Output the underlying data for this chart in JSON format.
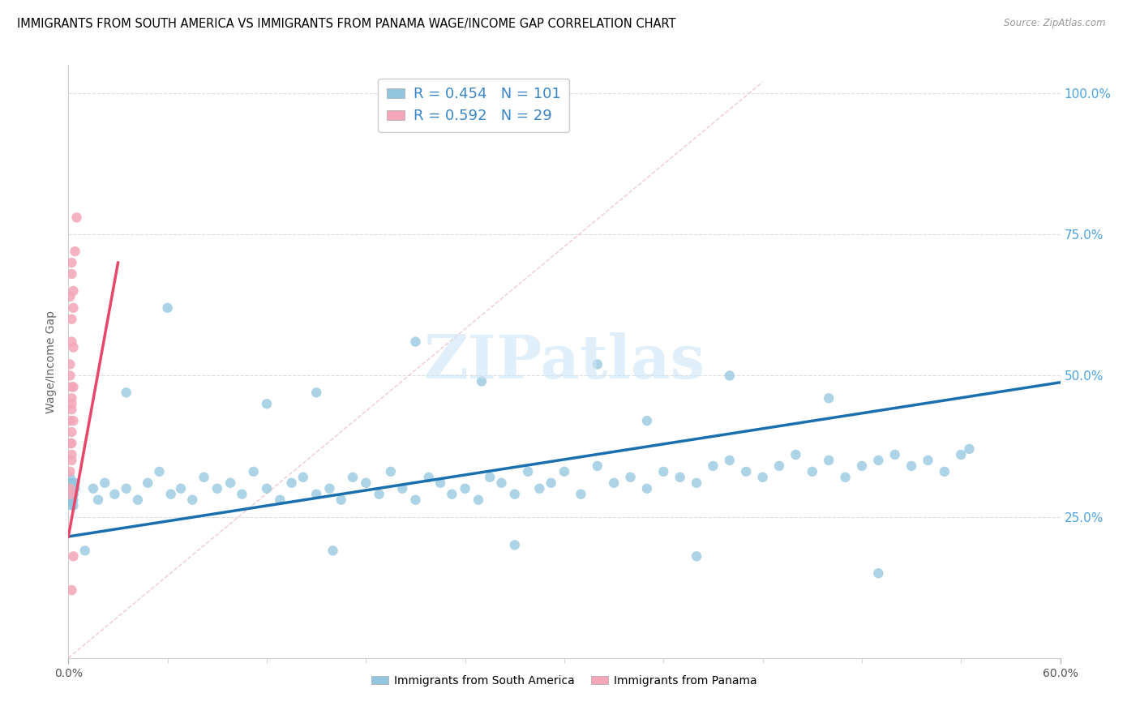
{
  "title": "IMMIGRANTS FROM SOUTH AMERICA VS IMMIGRANTS FROM PANAMA WAGE/INCOME GAP CORRELATION CHART",
  "source": "Source: ZipAtlas.com",
  "ylabel": "Wage/Income Gap",
  "right_yticklabels": [
    "25.0%",
    "50.0%",
    "75.0%",
    "100.0%"
  ],
  "right_ytick_vals": [
    0.25,
    0.5,
    0.75,
    1.0
  ],
  "legend_label_blue": "Immigrants from South America",
  "legend_label_pink": "Immigrants from Panama",
  "R_blue": 0.454,
  "N_blue": 101,
  "R_pink": 0.592,
  "N_pink": 29,
  "color_blue": "#92c5de",
  "color_blue_line": "#1a6faf",
  "color_pink": "#f4a6b8",
  "color_pink_line": "#e8476a",
  "watermark_color": "#cce5f5",
  "blue_x": [
    0.002,
    0.003,
    0.004,
    0.002,
    0.003,
    0.001,
    0.002,
    0.003,
    0.002,
    0.001,
    0.003,
    0.002,
    0.004,
    0.003,
    0.002,
    0.001,
    0.003,
    0.002,
    0.001,
    0.003,
    0.015,
    0.018,
    0.022,
    0.028,
    0.035,
    0.042,
    0.048,
    0.055,
    0.062,
    0.068,
    0.075,
    0.082,
    0.09,
    0.098,
    0.105,
    0.112,
    0.12,
    0.128,
    0.135,
    0.142,
    0.15,
    0.158,
    0.165,
    0.172,
    0.18,
    0.188,
    0.195,
    0.202,
    0.21,
    0.218,
    0.225,
    0.232,
    0.24,
    0.248,
    0.255,
    0.262,
    0.27,
    0.278,
    0.285,
    0.292,
    0.3,
    0.31,
    0.32,
    0.33,
    0.34,
    0.35,
    0.36,
    0.37,
    0.38,
    0.39,
    0.4,
    0.41,
    0.42,
    0.43,
    0.44,
    0.45,
    0.46,
    0.47,
    0.48,
    0.49,
    0.5,
    0.51,
    0.52,
    0.53,
    0.54,
    0.545,
    0.035,
    0.12,
    0.21,
    0.32,
    0.4,
    0.46,
    0.15,
    0.25,
    0.35,
    0.06,
    0.16,
    0.27,
    0.38,
    0.49,
    0.01
  ],
  "blue_y": [
    0.28,
    0.3,
    0.31,
    0.29,
    0.27,
    0.3,
    0.28,
    0.29,
    0.31,
    0.3,
    0.28,
    0.29,
    0.3,
    0.31,
    0.28,
    0.32,
    0.29,
    0.27,
    0.31,
    0.3,
    0.3,
    0.28,
    0.31,
    0.29,
    0.3,
    0.28,
    0.31,
    0.33,
    0.29,
    0.3,
    0.28,
    0.32,
    0.3,
    0.31,
    0.29,
    0.33,
    0.3,
    0.28,
    0.31,
    0.32,
    0.29,
    0.3,
    0.28,
    0.32,
    0.31,
    0.29,
    0.33,
    0.3,
    0.28,
    0.32,
    0.31,
    0.29,
    0.3,
    0.28,
    0.32,
    0.31,
    0.29,
    0.33,
    0.3,
    0.31,
    0.33,
    0.29,
    0.34,
    0.31,
    0.32,
    0.3,
    0.33,
    0.32,
    0.31,
    0.34,
    0.35,
    0.33,
    0.32,
    0.34,
    0.36,
    0.33,
    0.35,
    0.32,
    0.34,
    0.35,
    0.36,
    0.34,
    0.35,
    0.33,
    0.36,
    0.37,
    0.47,
    0.45,
    0.56,
    0.52,
    0.5,
    0.46,
    0.47,
    0.49,
    0.42,
    0.62,
    0.19,
    0.2,
    0.18,
    0.15,
    0.19
  ],
  "pink_x": [
    0.001,
    0.001,
    0.002,
    0.002,
    0.001,
    0.002,
    0.003,
    0.002,
    0.001,
    0.002,
    0.001,
    0.002,
    0.001,
    0.002,
    0.003,
    0.002,
    0.003,
    0.002,
    0.001,
    0.002,
    0.002,
    0.003,
    0.001,
    0.002,
    0.003,
    0.004,
    0.005,
    0.003,
    0.002
  ],
  "pink_y": [
    0.3,
    0.29,
    0.35,
    0.38,
    0.33,
    0.36,
    0.42,
    0.45,
    0.5,
    0.48,
    0.52,
    0.6,
    0.64,
    0.68,
    0.55,
    0.7,
    0.65,
    0.44,
    0.42,
    0.46,
    0.4,
    0.48,
    0.38,
    0.56,
    0.62,
    0.72,
    0.78,
    0.18,
    0.12
  ],
  "blue_line_x0": 0.0,
  "blue_line_x1": 0.6,
  "blue_line_y0": 0.215,
  "blue_line_y1": 0.488,
  "pink_line_x0": 0.0,
  "pink_line_x1": 0.03,
  "pink_line_y0": 0.215,
  "pink_line_y1": 0.7,
  "ref_line_x0": 0.0,
  "ref_line_x1": 0.42,
  "ref_line_y0": 0.0,
  "ref_line_y1": 1.02,
  "xlim": [
    0.0,
    0.6
  ],
  "ylim": [
    0.0,
    1.05
  ]
}
